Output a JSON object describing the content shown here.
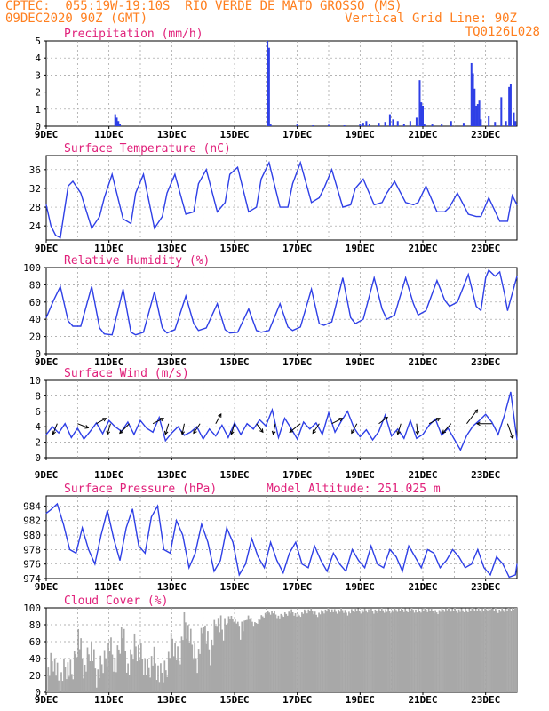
{
  "header": {
    "line1_left": "CPTEC:  055:19W-19:10S  RIO VERDE DE MATO GROSSO (MS)",
    "line2_left": "09DEC2020 90Z (GMT)",
    "line2_right": "Vertical Grid Line: 90Z",
    "line3_right": "TQ0126L028"
  },
  "colors": {
    "header": "#ff7f1f",
    "title": "#e0207a",
    "line": "#2e3fe6",
    "cloud": "#a8a8a8",
    "grid": "#9a9a9a",
    "arrow": "#000000"
  },
  "chart_data": [
    {
      "id": "precipitation",
      "type": "bar",
      "title": "Precipitation (mm/h)",
      "x_ticks": [
        "9DEC",
        "11DEC",
        "13DEC",
        "15DEC",
        "17DEC",
        "19DEC",
        "21DEC",
        "23DEC"
      ],
      "x_range_days": [
        9,
        24
      ],
      "ylim": [
        0,
        5
      ],
      "y_ticks": [
        0,
        1,
        2,
        3,
        4,
        5
      ],
      "x": [
        11.2,
        11.25,
        11.3,
        11.35,
        16.05,
        16.1,
        16.15,
        17.0,
        17.5,
        18.0,
        18.5,
        19.0,
        19.1,
        19.2,
        19.3,
        19.6,
        19.8,
        19.95,
        20.05,
        20.2,
        20.4,
        20.6,
        20.8,
        20.9,
        20.95,
        21.0,
        21.05,
        21.3,
        21.6,
        21.9,
        22.3,
        22.55,
        22.6,
        22.65,
        22.7,
        22.75,
        22.8,
        22.85,
        23.1,
        23.3,
        23.5,
        23.65,
        23.75,
        23.8,
        23.9,
        23.95
      ],
      "values": [
        0.7,
        0.5,
        0.3,
        0.15,
        5.0,
        4.6,
        0.1,
        0.1,
        0.05,
        0.08,
        0.05,
        0.1,
        0.2,
        0.3,
        0.15,
        0.2,
        0.25,
        0.7,
        0.4,
        0.3,
        0.15,
        0.3,
        0.5,
        2.7,
        1.4,
        1.2,
        0.1,
        0.1,
        0.15,
        0.3,
        0.2,
        3.7,
        3.1,
        2.2,
        1.2,
        1.3,
        1.5,
        0.4,
        0.6,
        0.25,
        1.7,
        0.3,
        2.3,
        2.5,
        0.8,
        0.3
      ]
    },
    {
      "id": "temperature",
      "type": "line",
      "title": "Surface Temperature (nC)",
      "x_ticks": [
        "9DEC",
        "11DEC",
        "13DEC",
        "15DEC",
        "17DEC",
        "19DEC",
        "21DEC",
        "23DEC"
      ],
      "x_range_days": [
        9,
        24
      ],
      "ylim": [
        21,
        39
      ],
      "y_ticks": [
        24,
        28,
        32,
        36
      ],
      "x": [
        9.0,
        9.15,
        9.3,
        9.45,
        9.7,
        9.85,
        10.1,
        10.45,
        10.7,
        10.85,
        11.1,
        11.45,
        11.7,
        11.85,
        12.1,
        12.45,
        12.7,
        12.85,
        13.1,
        13.45,
        13.7,
        13.85,
        14.1,
        14.45,
        14.7,
        14.85,
        15.1,
        15.45,
        15.7,
        15.85,
        16.1,
        16.45,
        16.7,
        16.85,
        17.1,
        17.45,
        17.7,
        17.85,
        18.1,
        18.45,
        18.7,
        18.85,
        19.1,
        19.45,
        19.7,
        19.85,
        20.1,
        20.45,
        20.7,
        20.85,
        21.1,
        21.45,
        21.7,
        21.85,
        22.1,
        22.45,
        22.7,
        22.85,
        23.1,
        23.45,
        23.7,
        23.85,
        24.0
      ],
      "values": [
        28.5,
        24,
        22,
        21.5,
        32.5,
        33.5,
        31,
        23.5,
        26,
        30,
        35,
        25.5,
        24.5,
        31,
        35,
        23.5,
        26,
        31,
        35,
        26.5,
        27,
        33,
        36,
        27,
        29,
        35,
        36.5,
        27,
        28,
        34,
        37.5,
        28,
        28,
        33,
        37.5,
        29,
        30,
        32,
        36,
        28,
        28.5,
        32,
        34,
        28.5,
        29,
        31,
        33.5,
        29,
        28.5,
        29,
        32.5,
        27,
        27,
        28,
        31,
        26.5,
        26,
        26,
        30,
        25,
        25,
        30.5,
        28.5
      ]
    },
    {
      "id": "humidity",
      "type": "line",
      "title": "Relative Humidity (%)",
      "x_ticks": [
        "9DEC",
        "11DEC",
        "13DEC",
        "15DEC",
        "17DEC",
        "19DEC",
        "21DEC",
        "23DEC"
      ],
      "x_range_days": [
        9,
        24
      ],
      "ylim": [
        0,
        100
      ],
      "y_ticks": [
        0,
        20,
        40,
        60,
        80,
        100
      ],
      "x": [
        9.0,
        9.25,
        9.45,
        9.7,
        9.85,
        10.1,
        10.45,
        10.7,
        10.85,
        11.1,
        11.45,
        11.7,
        11.85,
        12.1,
        12.45,
        12.7,
        12.85,
        13.1,
        13.45,
        13.7,
        13.85,
        14.1,
        14.45,
        14.7,
        14.85,
        15.1,
        15.45,
        15.7,
        15.85,
        16.1,
        16.45,
        16.7,
        16.85,
        17.1,
        17.45,
        17.7,
        17.85,
        18.1,
        18.45,
        18.7,
        18.85,
        19.1,
        19.45,
        19.7,
        19.85,
        20.1,
        20.45,
        20.7,
        20.85,
        21.1,
        21.45,
        21.7,
        21.85,
        22.1,
        22.45,
        22.7,
        22.85,
        23.0,
        23.1,
        23.3,
        23.45,
        23.6,
        23.7,
        23.85,
        24.0
      ],
      "values": [
        42,
        63,
        78,
        38,
        32,
        32,
        78,
        30,
        23,
        22,
        75,
        25,
        22,
        25,
        72,
        30,
        24,
        28,
        67,
        35,
        27,
        30,
        58,
        28,
        24,
        25,
        52,
        27,
        25,
        27,
        58,
        31,
        27,
        31,
        75,
        35,
        33,
        37,
        88,
        42,
        35,
        40,
        88,
        52,
        40,
        45,
        88,
        58,
        45,
        50,
        85,
        62,
        55,
        60,
        92,
        55,
        50,
        88,
        97,
        90,
        95,
        70,
        50,
        70,
        90
      ]
    },
    {
      "id": "wind",
      "type": "line",
      "title": "Surface Wind (m/s)",
      "x_ticks": [
        "9DEC",
        "11DEC",
        "13DEC",
        "15DEC",
        "17DEC",
        "19DEC",
        "21DEC",
        "23DEC"
      ],
      "x_range_days": [
        9,
        24
      ],
      "ylim": [
        0,
        10
      ],
      "y_ticks": [
        0,
        2,
        4,
        6,
        8,
        10
      ],
      "x": [
        9.0,
        9.2,
        9.4,
        9.6,
        9.8,
        10.0,
        10.2,
        10.4,
        10.6,
        10.8,
        11.0,
        11.2,
        11.4,
        11.6,
        11.8,
        12.0,
        12.2,
        12.4,
        12.6,
        12.8,
        13.0,
        13.2,
        13.4,
        13.6,
        13.8,
        14.0,
        14.2,
        14.4,
        14.6,
        14.8,
        15.0,
        15.2,
        15.4,
        15.6,
        15.8,
        16.0,
        16.2,
        16.4,
        16.6,
        16.8,
        17.0,
        17.2,
        17.4,
        17.6,
        17.8,
        18.0,
        18.2,
        18.4,
        18.6,
        18.8,
        19.0,
        19.2,
        19.4,
        19.6,
        19.8,
        20.0,
        20.2,
        20.4,
        20.6,
        20.8,
        21.0,
        21.2,
        21.4,
        21.6,
        21.8,
        22.0,
        22.2,
        22.4,
        22.6,
        22.8,
        23.0,
        23.2,
        23.4,
        23.6,
        23.8,
        24.0
      ],
      "values": [
        3.0,
        4.0,
        3.2,
        4.4,
        2.6,
        3.8,
        2.4,
        3.4,
        4.5,
        3.1,
        4.8,
        4.0,
        3.4,
        4.6,
        3.0,
        4.8,
        3.8,
        3.3,
        5.2,
        2.2,
        3.2,
        4.0,
        2.9,
        3.3,
        4.0,
        2.4,
        3.7,
        2.8,
        4.2,
        2.6,
        4.5,
        3.0,
        4.4,
        3.7,
        4.9,
        4.1,
        6.2,
        2.6,
        5.1,
        3.8,
        2.4,
        4.6,
        3.7,
        4.5,
        3.0,
        5.8,
        3.3,
        4.7,
        6.0,
        3.9,
        2.7,
        3.6,
        2.3,
        3.4,
        5.5,
        2.8,
        3.7,
        2.5,
        4.8,
        2.5,
        3.0,
        4.2,
        5.0,
        2.9,
        3.8,
        2.4,
        1.0,
        2.9,
        4.1,
        4.8,
        5.6,
        4.6,
        3.0,
        5.5,
        8.5,
        2.3
      ]
    },
    {
      "id": "pressure",
      "type": "line",
      "title": "Surface Pressure (hPa)",
      "subtitle": "Model Altitude: 251.025 m",
      "x_ticks": [
        "9DEC",
        "11DEC",
        "13DEC",
        "15DEC",
        "17DEC",
        "19DEC",
        "21DEC",
        "23DEC"
      ],
      "x_range_days": [
        9,
        24
      ],
      "ylim": [
        974,
        985.4
      ],
      "y_ticks": [
        974,
        976,
        978,
        980,
        982,
        984
      ],
      "x": [
        9.0,
        9.15,
        9.35,
        9.55,
        9.75,
        9.95,
        10.15,
        10.35,
        10.55,
        10.75,
        10.95,
        11.15,
        11.35,
        11.55,
        11.75,
        11.95,
        12.15,
        12.35,
        12.55,
        12.75,
        12.95,
        13.15,
        13.35,
        13.55,
        13.75,
        13.95,
        14.15,
        14.35,
        14.55,
        14.75,
        14.95,
        15.15,
        15.35,
        15.55,
        15.75,
        15.95,
        16.15,
        16.35,
        16.55,
        16.75,
        16.95,
        17.15,
        17.35,
        17.55,
        17.75,
        17.95,
        18.15,
        18.35,
        18.55,
        18.75,
        18.95,
        19.15,
        19.35,
        19.55,
        19.75,
        19.95,
        20.15,
        20.35,
        20.55,
        20.75,
        20.95,
        21.15,
        21.35,
        21.55,
        21.75,
        21.95,
        22.15,
        22.35,
        22.55,
        22.75,
        22.95,
        23.15,
        23.35,
        23.55,
        23.75,
        23.95,
        24.0
      ],
      "values": [
        983.0,
        983.5,
        984.3,
        981.5,
        978.0,
        977.5,
        981.0,
        978.0,
        976.0,
        980.0,
        983.4,
        979.5,
        976.5,
        981.0,
        983.6,
        978.5,
        977.5,
        982.5,
        984.0,
        978.0,
        977.5,
        982.0,
        980.0,
        975.5,
        977.5,
        981.5,
        979.0,
        975.0,
        976.5,
        981.0,
        979.0,
        974.5,
        976.0,
        979.5,
        977.0,
        975.5,
        979.0,
        976.5,
        974.8,
        977.5,
        979.0,
        976.0,
        975.5,
        978.5,
        976.5,
        975.0,
        977.5,
        976.0,
        975.0,
        978.0,
        976.5,
        975.5,
        978.5,
        976.0,
        975.5,
        978.0,
        977.0,
        975.0,
        978.5,
        977.0,
        975.5,
        978.0,
        977.5,
        975.5,
        976.5,
        978.0,
        977.0,
        975.5,
        976.0,
        978.0,
        975.5,
        974.5,
        977.0,
        976.0,
        974.2,
        974.5,
        976.0
      ]
    },
    {
      "id": "cloud_cover",
      "type": "area",
      "title": "Cloud Cover (%)",
      "x_ticks": [
        "9DEC",
        "11DEC",
        "13DEC",
        "15DEC",
        "17DEC",
        "19DEC",
        "21DEC",
        "23DEC"
      ],
      "x_range_days": [
        9,
        24
      ],
      "ylim": [
        0,
        100
      ],
      "y_ticks": [
        0,
        20,
        40,
        60,
        80,
        100
      ],
      "x": [
        9.0,
        9.2,
        9.4,
        9.6,
        9.8,
        10.0,
        10.2,
        10.4,
        10.6,
        10.8,
        11.0,
        11.2,
        11.4,
        11.6,
        11.8,
        12.0,
        12.2,
        12.4,
        12.6,
        12.8,
        13.0,
        13.2,
        13.4,
        13.6,
        13.8,
        14.0,
        14.2,
        14.4,
        14.6,
        14.8,
        15.0,
        15.2,
        15.4,
        15.6,
        15.8,
        16.0,
        16.2,
        16.4,
        16.6,
        16.8,
        17.0,
        17.2,
        17.4,
        17.6,
        17.8,
        18.0,
        18.2,
        18.4,
        18.6,
        18.8,
        19.0,
        19.2,
        19.4,
        19.6,
        19.8,
        20.0,
        20.2,
        20.4,
        20.6,
        20.8,
        21.0,
        21.2,
        21.4,
        21.6,
        21.8,
        22.0,
        22.2,
        22.4,
        22.6,
        22.8,
        23.0,
        23.2,
        23.4,
        23.6,
        23.8,
        24.0
      ],
      "values": [
        20,
        42,
        10,
        30,
        18,
        70,
        25,
        55,
        15,
        35,
        58,
        30,
        75,
        20,
        60,
        45,
        25,
        40,
        15,
        30,
        65,
        35,
        85,
        55,
        40,
        80,
        45,
        82,
        70,
        90,
        85,
        75,
        90,
        80,
        88,
        94,
        95,
        88,
        93,
        96,
        90,
        95,
        97,
        92,
        96,
        98,
        95,
        97,
        94,
        98,
        96,
        97,
        95,
        98,
        97,
        96,
        98,
        97,
        99,
        96,
        98,
        97,
        95,
        98,
        99,
        97,
        96,
        98,
        99,
        97,
        98,
        99,
        97,
        98,
        99,
        100
      ]
    }
  ],
  "wind_arrows": [
    {
      "day": 9.35,
      "u": -0.4,
      "v": -1.0
    },
    {
      "day": 10.0,
      "u": 1.0,
      "v": -0.4
    },
    {
      "day": 10.6,
      "u": 0.9,
      "v": 0.5
    },
    {
      "day": 11.05,
      "u": -0.3,
      "v": -1.0
    },
    {
      "day": 11.65,
      "u": -0.9,
      "v": -0.9
    },
    {
      "day": 12.4,
      "u": 1.0,
      "v": 0.5
    },
    {
      "day": 12.9,
      "u": -0.3,
      "v": -1.0
    },
    {
      "day": 13.4,
      "u": -0.2,
      "v": -1.0
    },
    {
      "day": 13.9,
      "u": -0.6,
      "v": -0.9
    },
    {
      "day": 14.4,
      "u": 0.5,
      "v": 0.9
    },
    {
      "day": 15.0,
      "u": -0.3,
      "v": -1.0
    },
    {
      "day": 15.7,
      "u": 0.6,
      "v": -0.8
    },
    {
      "day": 16.3,
      "u": -0.2,
      "v": -1.0
    },
    {
      "day": 17.1,
      "u": -1.0,
      "v": -0.8
    },
    {
      "day": 17.7,
      "u": -0.6,
      "v": -0.9
    },
    {
      "day": 18.1,
      "u": 1.0,
      "v": 0.5
    },
    {
      "day": 18.9,
      "u": -0.5,
      "v": -0.9
    },
    {
      "day": 19.6,
      "u": 0.8,
      "v": 0.6
    },
    {
      "day": 20.3,
      "u": -0.3,
      "v": -1.0
    },
    {
      "day": 20.8,
      "u": 0.1,
      "v": -1.0
    },
    {
      "day": 21.2,
      "u": 1.0,
      "v": 0.5
    },
    {
      "day": 21.9,
      "u": -0.8,
      "v": -0.9
    },
    {
      "day": 22.4,
      "u": 1.0,
      "v": 1.3
    },
    {
      "day": 23.2,
      "u": -1.4,
      "v": 0.0
    },
    {
      "day": 23.7,
      "u": 0.5,
      "v": -1.4
    }
  ]
}
